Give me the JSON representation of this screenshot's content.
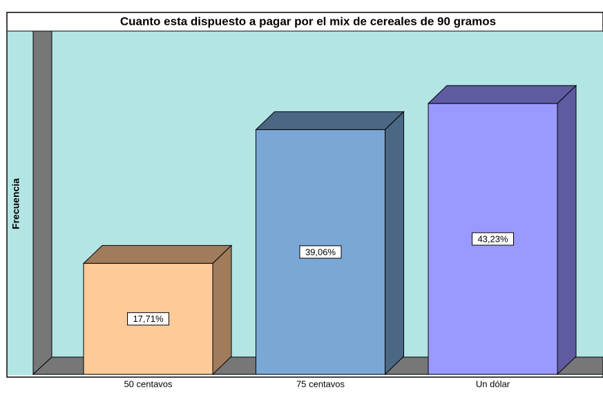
{
  "chart_data": {
    "type": "bar3d",
    "title": "Cuanto esta dispuesto a pagar por el mix de cereales de 90 gramos",
    "y_label": "Frecuencia",
    "categories": [
      "50 centavos",
      "75 centavos",
      "Un dólar"
    ],
    "series": [
      {
        "name": null,
        "values": [
          17.71,
          39.06,
          43.23
        ],
        "value_labels": [
          "17,71%",
          "39,06%",
          "43,23%"
        ],
        "colors": [
          "#fecb98",
          "#7ba7d5",
          "#9a99ff"
        ],
        "shade_colors": [
          "#a07c5c",
          "#4a6783",
          "#5e5ba0"
        ]
      }
    ]
  }
}
